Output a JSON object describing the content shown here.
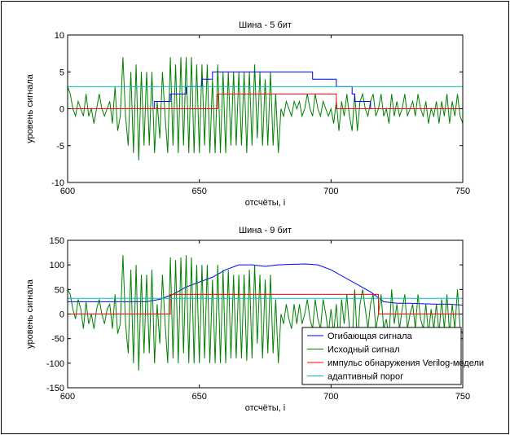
{
  "chart_data": [
    {
      "type": "line",
      "title": "Шина - 5 бит",
      "xlabel": "отсчёты, i",
      "ylabel": "уровень сигнала",
      "xlim": [
        600,
        750
      ],
      "ylim": [
        -10,
        10
      ],
      "xticks": [
        600,
        650,
        700,
        750
      ],
      "yticks": [
        -10,
        -5,
        0,
        5,
        10
      ],
      "series": [
        {
          "name": "Исходный сигнал",
          "color": "#008000",
          "x": [
            600,
            601,
            602,
            603,
            604,
            605,
            606,
            607,
            608,
            609,
            610,
            611,
            612,
            613,
            614,
            615,
            616,
            617,
            618,
            619,
            620,
            621,
            622,
            623,
            624,
            625,
            626,
            627,
            628,
            629,
            630,
            631,
            632,
            633,
            634,
            635,
            636,
            637,
            638,
            639,
            640,
            641,
            642,
            643,
            644,
            645,
            646,
            647,
            648,
            649,
            650,
            651,
            652,
            653,
            654,
            655,
            656,
            657,
            658,
            659,
            660,
            661,
            662,
            663,
            664,
            665,
            666,
            667,
            668,
            669,
            670,
            671,
            672,
            673,
            674,
            675,
            676,
            677,
            678,
            679,
            680,
            681,
            682,
            683,
            684,
            685,
            686,
            687,
            688,
            689,
            690,
            691,
            692,
            693,
            694,
            695,
            696,
            697,
            698,
            699,
            700,
            701,
            702,
            703,
            704,
            705,
            706,
            707,
            708,
            709,
            710,
            711,
            712,
            713,
            714,
            715,
            716,
            717,
            718,
            719,
            720,
            721,
            722,
            723,
            724,
            725,
            726,
            727,
            728,
            729,
            730,
            731,
            732,
            733,
            734,
            735,
            736,
            737,
            738,
            739,
            740,
            741,
            742,
            743,
            744,
            745,
            746,
            747,
            748,
            749,
            750
          ],
          "y": [
            3,
            2,
            0,
            -1,
            1,
            0,
            -1,
            2,
            -1,
            0,
            -2,
            0,
            2,
            0,
            -1,
            0,
            1,
            -2,
            3,
            -3,
            -1,
            7,
            -1,
            -5,
            5,
            -6,
            6,
            -7,
            5,
            -5,
            5,
            -5,
            5,
            -6,
            1,
            -4,
            5,
            -1,
            -6,
            7,
            -5,
            6,
            -6,
            7,
            -5,
            7,
            -6,
            7,
            -6,
            6,
            -6,
            6,
            -5,
            6,
            -6,
            4,
            -6,
            6,
            -6,
            5,
            -6,
            5,
            -5,
            5,
            -5,
            5,
            -5,
            5,
            -6,
            5,
            -5,
            6,
            -4,
            5,
            -5,
            4,
            -5,
            5,
            -5,
            2,
            -6,
            0,
            -1,
            1,
            0,
            -1,
            1,
            0,
            1,
            -1,
            0,
            2,
            0,
            -1,
            2,
            0,
            -1,
            1,
            0,
            -1,
            0,
            -2,
            1,
            -3,
            1,
            -1,
            2,
            -1,
            -3,
            2,
            -3,
            1,
            2,
            0,
            -1,
            1,
            2,
            -1,
            0,
            2,
            -1,
            0,
            -2,
            2,
            -1,
            1,
            -1,
            0,
            2,
            -1,
            0,
            1,
            -1,
            2,
            0,
            -1,
            1,
            -2,
            0,
            -1,
            1,
            -2,
            1,
            -1,
            2,
            -2,
            1,
            -1,
            2,
            -1,
            -2
          ]
        },
        {
          "name": "Огибающая сигнала",
          "color": "#0000ff",
          "x": [
            600,
            633,
            633,
            634,
            634,
            639,
            639,
            640,
            640,
            645,
            645,
            646,
            646,
            651,
            651,
            652,
            652,
            655,
            655,
            656,
            656,
            658,
            658,
            690,
            690,
            693,
            693,
            701,
            701,
            702,
            702,
            708,
            708,
            709,
            709,
            714,
            714,
            715,
            715,
            718,
            718,
            719,
            719,
            750
          ],
          "y": [
            0,
            0,
            1,
            1,
            1,
            1,
            2,
            2,
            2,
            2,
            3,
            3,
            3,
            3,
            4,
            4,
            4,
            4,
            5,
            5,
            5,
            5,
            5,
            5,
            5,
            5,
            4,
            4,
            4,
            4,
            3,
            3,
            2,
            2,
            1,
            1,
            1,
            1,
            0,
            0,
            0,
            0,
            0,
            0
          ]
        },
        {
          "name": "импульс обнаружения Verilog-модели",
          "color": "#ff0000",
          "x": [
            600,
            657,
            657,
            702,
            702,
            750
          ],
          "y": [
            0,
            0,
            2,
            2,
            0,
            0
          ]
        },
        {
          "name": "адаптивный порог",
          "color": "#00bfbf",
          "x": [
            600,
            750
          ],
          "y": [
            3,
            3
          ]
        }
      ]
    },
    {
      "type": "line",
      "title": "Шина - 9 бит",
      "xlabel": "отсчёты, i",
      "ylabel": "уровень сигнала",
      "xlim": [
        600,
        750
      ],
      "ylim": [
        -150,
        150
      ],
      "xticks": [
        600,
        650,
        700,
        750
      ],
      "yticks": [
        -150,
        -100,
        -50,
        0,
        50,
        100,
        150
      ],
      "legend": "bottom-right",
      "series": [
        {
          "name": "Огибающая сигнала",
          "color": "#0000ff",
          "x": [
            600,
            630,
            635,
            640,
            645,
            650,
            655,
            660,
            665,
            670,
            675,
            680,
            685,
            690,
            695,
            700,
            705,
            710,
            715,
            720,
            725,
            730,
            735,
            740,
            745,
            750
          ],
          "y": [
            25,
            25,
            30,
            40,
            55,
            65,
            75,
            90,
            100,
            100,
            97,
            100,
            101,
            102,
            100,
            90,
            75,
            60,
            45,
            25,
            22,
            22,
            21,
            20,
            20,
            18
          ]
        },
        {
          "name": "Исходный сигнал",
          "color": "#008000",
          "x": [
            600,
            601,
            602,
            603,
            604,
            605,
            606,
            607,
            608,
            609,
            610,
            611,
            612,
            613,
            614,
            615,
            616,
            617,
            618,
            619,
            620,
            621,
            622,
            623,
            624,
            625,
            626,
            627,
            628,
            629,
            630,
            631,
            632,
            633,
            634,
            635,
            636,
            637,
            638,
            639,
            640,
            641,
            642,
            643,
            644,
            645,
            646,
            647,
            648,
            649,
            650,
            651,
            652,
            653,
            654,
            655,
            656,
            657,
            658,
            659,
            660,
            661,
            662,
            663,
            664,
            665,
            666,
            667,
            668,
            669,
            670,
            671,
            672,
            673,
            674,
            675,
            676,
            677,
            678,
            679,
            680,
            681,
            682,
            683,
            684,
            685,
            686,
            687,
            688,
            689,
            690,
            691,
            692,
            693,
            694,
            695,
            696,
            697,
            698,
            699,
            700,
            701,
            702,
            703,
            704,
            705,
            706,
            707,
            708,
            709,
            710,
            711,
            712,
            713,
            714,
            715,
            716,
            717,
            718,
            719,
            720,
            721,
            722,
            723,
            724,
            725,
            726,
            727,
            728,
            729,
            730,
            731,
            732,
            733,
            734,
            735,
            736,
            737,
            738,
            739,
            740,
            741,
            742,
            743,
            744,
            745,
            746,
            747,
            748,
            749,
            750
          ],
          "y": [
            50,
            40,
            10,
            -10,
            30,
            10,
            -30,
            25,
            -20,
            0,
            -30,
            10,
            30,
            0,
            -20,
            10,
            20,
            -30,
            40,
            -40,
            -20,
            120,
            -20,
            -80,
            90,
            -100,
            100,
            -115,
            80,
            -80,
            80,
            -80,
            90,
            -100,
            20,
            -60,
            80,
            -20,
            -100,
            115,
            -90,
            110,
            -100,
            115,
            -80,
            120,
            -100,
            115,
            -100,
            100,
            -100,
            100,
            -90,
            100,
            -100,
            70,
            -100,
            100,
            -100,
            90,
            -100,
            90,
            -90,
            80,
            -90,
            80,
            -90,
            80,
            -95,
            90,
            -90,
            100,
            -60,
            80,
            -90,
            70,
            -80,
            80,
            -80,
            30,
            -100,
            0,
            -20,
            20,
            -10,
            -30,
            20,
            -20,
            20,
            -20,
            0,
            30,
            -10,
            -30,
            30,
            -10,
            -30,
            30,
            0,
            -40,
            10,
            -40,
            20,
            -60,
            30,
            -20,
            40,
            -30,
            -60,
            50,
            -60,
            20,
            50,
            10,
            -30,
            20,
            40,
            -30,
            0,
            40,
            -30,
            -10,
            -50,
            50,
            -20,
            20,
            -30,
            10,
            40,
            -30,
            0,
            20,
            -30,
            40,
            -10,
            -30,
            20,
            -40,
            10,
            -30,
            20,
            -40,
            30,
            -30,
            40,
            -40,
            20,
            -30,
            50,
            -30,
            -40
          ]
        },
        {
          "name": "импульс обнаружения Verilog-модели",
          "color": "#ff0000",
          "x": [
            600,
            639,
            639,
            718,
            718,
            750
          ],
          "y": [
            0,
            0,
            40,
            40,
            0,
            0
          ]
        },
        {
          "name": "адаптивный порог",
          "color": "#00bfbf",
          "x": [
            600,
            750
          ],
          "y": [
            32,
            32
          ]
        }
      ]
    }
  ]
}
